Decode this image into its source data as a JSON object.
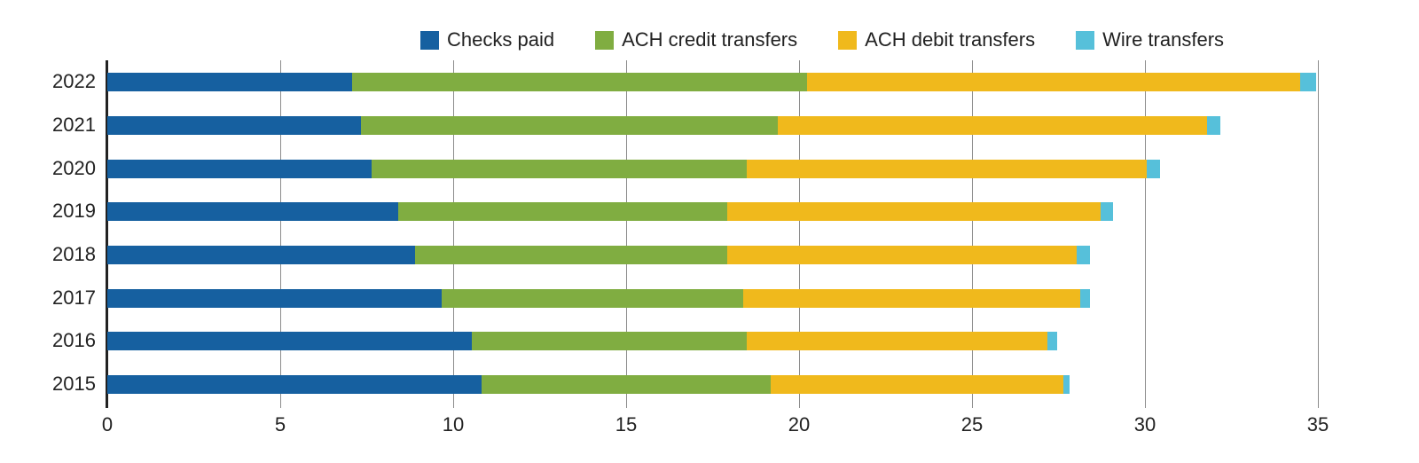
{
  "chart_data": {
    "type": "bar",
    "orientation": "horizontal",
    "stacked": true,
    "title": "",
    "xlabel": "",
    "ylabel": "",
    "xlim": [
      0,
      35
    ],
    "x_ticks": [
      0,
      5,
      10,
      15,
      20,
      25,
      30,
      35
    ],
    "grid": true,
    "legend_position": "top-right",
    "categories": [
      "2022",
      "2021",
      "2020",
      "2019",
      "2018",
      "2017",
      "2016",
      "2015"
    ],
    "series": [
      {
        "name": "Checks paid",
        "color": "#1660a0",
        "values": [
          7.07,
          7.34,
          7.64,
          8.42,
          8.89,
          9.67,
          10.53,
          10.82
        ]
      },
      {
        "name": "ACH credit transfers",
        "color": "#80ad41",
        "values": [
          13.16,
          12.04,
          10.85,
          9.5,
          9.03,
          8.72,
          7.96,
          8.36
        ]
      },
      {
        "name": "ACH debit transfers",
        "color": "#f0b91c",
        "values": [
          14.25,
          12.41,
          11.55,
          10.79,
          10.11,
          9.74,
          8.68,
          8.47
        ]
      },
      {
        "name": "Wire transfers",
        "color": "#56c0da",
        "values": [
          0.48,
          0.38,
          0.39,
          0.37,
          0.39,
          0.29,
          0.28,
          0.18
        ]
      }
    ]
  },
  "legend": [
    {
      "label": "Checks paid",
      "color": "#1660a0"
    },
    {
      "label": "ACH credit transfers",
      "color": "#80ad41"
    },
    {
      "label": "ACH debit transfers",
      "color": "#f0b91c"
    },
    {
      "label": "Wire transfers",
      "color": "#56c0da"
    }
  ],
  "x_tick_labels": [
    "0",
    "5",
    "10",
    "15",
    "20",
    "25",
    "30",
    "35"
  ],
  "y_tick_labels": [
    "2022",
    "2021",
    "2020",
    "2019",
    "2018",
    "2017",
    "2016",
    "2015"
  ]
}
